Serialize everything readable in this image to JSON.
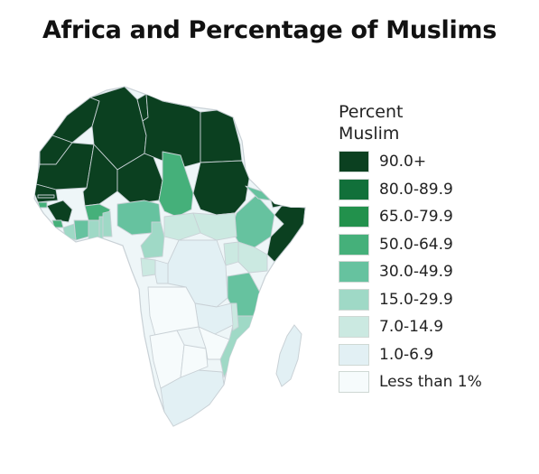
{
  "title": "Africa and Percentage of Muslims",
  "legend": {
    "title_line1": "Percent",
    "title_line2": "Muslim",
    "items": [
      {
        "label": "90.0+",
        "color": "#0b4020"
      },
      {
        "label": "80.0-89.9",
        "color": "#11703a"
      },
      {
        "label": "65.0-79.9",
        "color": "#22914c"
      },
      {
        "label": "50.0-64.9",
        "color": "#45b07a"
      },
      {
        "label": "30.0-49.9",
        "color": "#66c29f"
      },
      {
        "label": "15.0-29.9",
        "color": "#9fd9c6"
      },
      {
        "label": "7.0-14.9",
        "color": "#cbe9e1"
      },
      {
        "label": "1.0-6.9",
        "color": "#e2f0f4"
      },
      {
        "label": "Less than 1%",
        "color": "#f6fbfc"
      }
    ]
  },
  "map": {
    "region_classes": {
      "morocco": 0,
      "western-sahara": 0,
      "algeria": 0,
      "tunisia": 0,
      "libya": 0,
      "egypt": 0,
      "mauritania": 0,
      "mali": 0,
      "niger": 0,
      "senegal": 0,
      "gambia": 0,
      "guinea": 0,
      "sudan": 0,
      "somalia": 0,
      "djibouti": 0,
      "chad": 3,
      "guinea-bissau": 3,
      "sierra-leone": 3,
      "burkina-faso": 3,
      "nigeria": 4,
      "ethiopia": 4,
      "eritrea": 4,
      "tanzania": 4,
      "ivory-coast": 4,
      "liberia": 5,
      "ghana": 5,
      "togo": 5,
      "benin": 5,
      "cameroon": 5,
      "mozambique": 5,
      "kenya": 6,
      "malawi": 6,
      "south-sudan": 6,
      "car": 6,
      "uganda": 6,
      "gabon": 6,
      "drc": 7,
      "congo": 7,
      "zambia": 7,
      "madagascar": 7,
      "south-africa": 7,
      "angola": 8,
      "namibia": 8,
      "botswana": 8,
      "zimbabwe": 8
    }
  }
}
